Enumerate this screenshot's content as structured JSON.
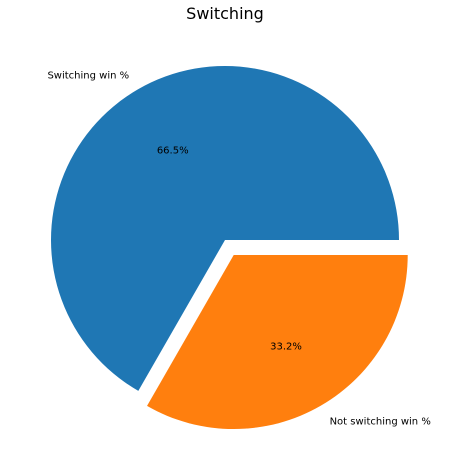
{
  "chart_data": {
    "type": "pie",
    "title": "Switching",
    "slices": [
      {
        "label": "Switching win %",
        "value": 66.5,
        "pct_label": "66.5%",
        "color": "#1f77b4",
        "exploded": false
      },
      {
        "label": "Not switching win %",
        "value": 33.2,
        "pct_label": "33.2%",
        "color": "#ff7f0e",
        "exploded": true
      }
    ],
    "start_angle_deg": 0,
    "direction": "counterclockwise"
  }
}
